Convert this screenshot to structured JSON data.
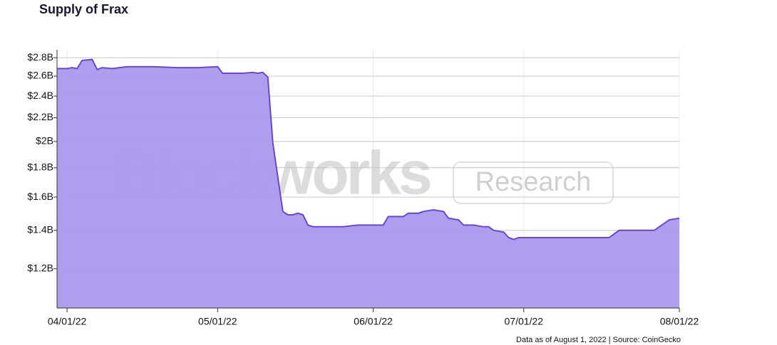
{
  "chart_data": {
    "type": "area",
    "title": "Supply of Frax",
    "watermark": [
      "Blockworks",
      "Research"
    ],
    "note": "Data as of August 1, 2022 | Source: CoinGecko",
    "color": "#6a45d6",
    "fill": "#ab99ec",
    "log_scale": true,
    "grid": true,
    "x": [
      "03/30/22",
      "04/01/22",
      "04/02/22",
      "04/03/22",
      "04/04/22",
      "04/06/22",
      "04/07/22",
      "04/08/22",
      "04/10/22",
      "04/13/22",
      "04/18/22",
      "04/23/22",
      "04/27/22",
      "05/01/22",
      "05/02/22",
      "05/06/22",
      "05/08/22",
      "05/09/22",
      "05/10/22",
      "05/11/22",
      "05/12/22",
      "05/14/22",
      "05/15/22",
      "05/16/22",
      "05/17/22",
      "05/18/22",
      "05/19/22",
      "05/20/22",
      "05/22/22",
      "05/23/22",
      "05/26/22",
      "05/29/22",
      "06/01/22",
      "06/03/22",
      "06/04/22",
      "06/07/22",
      "06/08/22",
      "06/10/22",
      "06/11/22",
      "06/13/22",
      "06/15/22",
      "06/16/22",
      "06/18/22",
      "06/19/22",
      "06/21/22",
      "06/23/22",
      "06/24/22",
      "06/25/22",
      "06/27/22",
      "06/28/22",
      "06/29/22",
      "06/30/22",
      "07/01/22",
      "07/04/22",
      "07/08/22",
      "07/15/22",
      "07/18/22",
      "07/20/22",
      "07/22/22",
      "07/27/22",
      "07/30/22",
      "08/01/22"
    ],
    "series": [
      {
        "name": "Supply",
        "values": [
          2680000000,
          2680000000,
          2690000000,
          2680000000,
          2770000000,
          2780000000,
          2670000000,
          2690000000,
          2680000000,
          2700000000,
          2700000000,
          2690000000,
          2690000000,
          2700000000,
          2630000000,
          2630000000,
          2640000000,
          2630000000,
          2640000000,
          2590000000,
          1990000000,
          1510000000,
          1490000000,
          1490000000,
          1500000000,
          1490000000,
          1430000000,
          1420000000,
          1420000000,
          1420000000,
          1420000000,
          1430000000,
          1430000000,
          1430000000,
          1480000000,
          1480000000,
          1500000000,
          1500000000,
          1510000000,
          1520000000,
          1510000000,
          1470000000,
          1460000000,
          1430000000,
          1430000000,
          1420000000,
          1420000000,
          1400000000,
          1390000000,
          1360000000,
          1350000000,
          1360000000,
          1360000000,
          1360000000,
          1360000000,
          1360000000,
          1360000000,
          1400000000,
          1400000000,
          1400000000,
          1460000000,
          1470000000
        ]
      }
    ],
    "xlim": [
      "03/30/22",
      "08/01/22"
    ],
    "xticks": [
      "04/01/22",
      "05/01/22",
      "06/01/22",
      "07/01/22",
      "08/01/22"
    ],
    "ylim": [
      1025000000,
      2890000000
    ],
    "yticks": [
      {
        "value": 1200000000,
        "label": "$1.2B"
      },
      {
        "value": 1400000000,
        "label": "$1.4B"
      },
      {
        "value": 1600000000,
        "label": "$1.6B"
      },
      {
        "value": 1800000000,
        "label": "$1.8B"
      },
      {
        "value": 2000000000,
        "label": "$2B"
      },
      {
        "value": 2200000000,
        "label": "$2.2B"
      },
      {
        "value": 2400000000,
        "label": "$2.4B"
      },
      {
        "value": 2600000000,
        "label": "$2.6B"
      },
      {
        "value": 2800000000,
        "label": "$2.8B"
      }
    ]
  }
}
